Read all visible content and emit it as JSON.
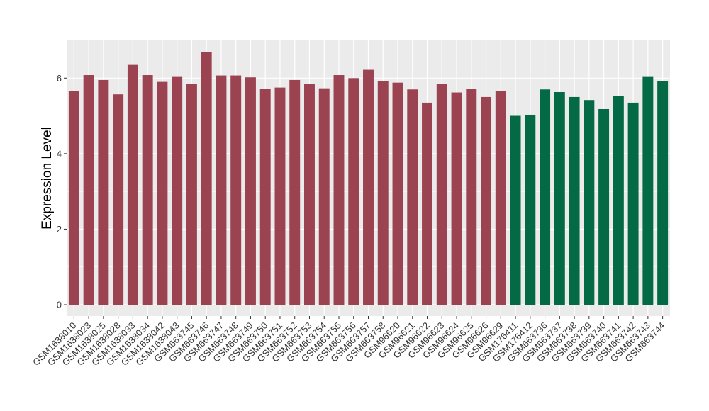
{
  "chart_data": {
    "type": "bar",
    "title": "",
    "xlabel": "",
    "ylabel": "Expression Level",
    "ylim": [
      -0.3,
      7.0
    ],
    "yticks": [
      0,
      2,
      4,
      6
    ],
    "grid": true,
    "legend": "none",
    "colors": {
      "group1": "#9B4350",
      "group2": "#046A45",
      "panel": "#EBEBEB",
      "grid": "#FFFFFF"
    },
    "categories": [
      "GSM1638010",
      "GSM1638023",
      "GSM1638025",
      "GSM1638028",
      "GSM1638033",
      "GSM1638034",
      "GSM1638042",
      "GSM1638043",
      "GSM663745",
      "GSM663746",
      "GSM663747",
      "GSM663748",
      "GSM663749",
      "GSM663750",
      "GSM663751",
      "GSM663752",
      "GSM663753",
      "GSM663754",
      "GSM663755",
      "GSM663756",
      "GSM663757",
      "GSM663758",
      "GSM96620",
      "GSM96621",
      "GSM96622",
      "GSM96623",
      "GSM96624",
      "GSM96625",
      "GSM96626",
      "GSM96629",
      "GSM176411",
      "GSM176412",
      "GSM663736",
      "GSM663737",
      "GSM663738",
      "GSM663739",
      "GSM663740",
      "GSM663741",
      "GSM663742",
      "GSM663743",
      "GSM663744"
    ],
    "values": [
      5.65,
      6.08,
      5.95,
      5.57,
      6.35,
      6.08,
      5.9,
      6.05,
      5.85,
      6.7,
      6.07,
      6.07,
      6.02,
      5.72,
      5.75,
      5.95,
      5.85,
      5.73,
      6.08,
      6.0,
      6.22,
      5.92,
      5.88,
      5.7,
      5.35,
      5.85,
      5.62,
      5.72,
      5.5,
      5.65,
      5.02,
      5.03,
      5.7,
      5.63,
      5.5,
      5.42,
      5.18,
      5.53,
      5.35,
      6.05,
      5.93
    ],
    "groups": [
      1,
      1,
      1,
      1,
      1,
      1,
      1,
      1,
      1,
      1,
      1,
      1,
      1,
      1,
      1,
      1,
      1,
      1,
      1,
      1,
      1,
      1,
      1,
      1,
      1,
      1,
      1,
      1,
      1,
      1,
      2,
      2,
      2,
      2,
      2,
      2,
      2,
      2,
      2,
      2,
      2
    ]
  }
}
